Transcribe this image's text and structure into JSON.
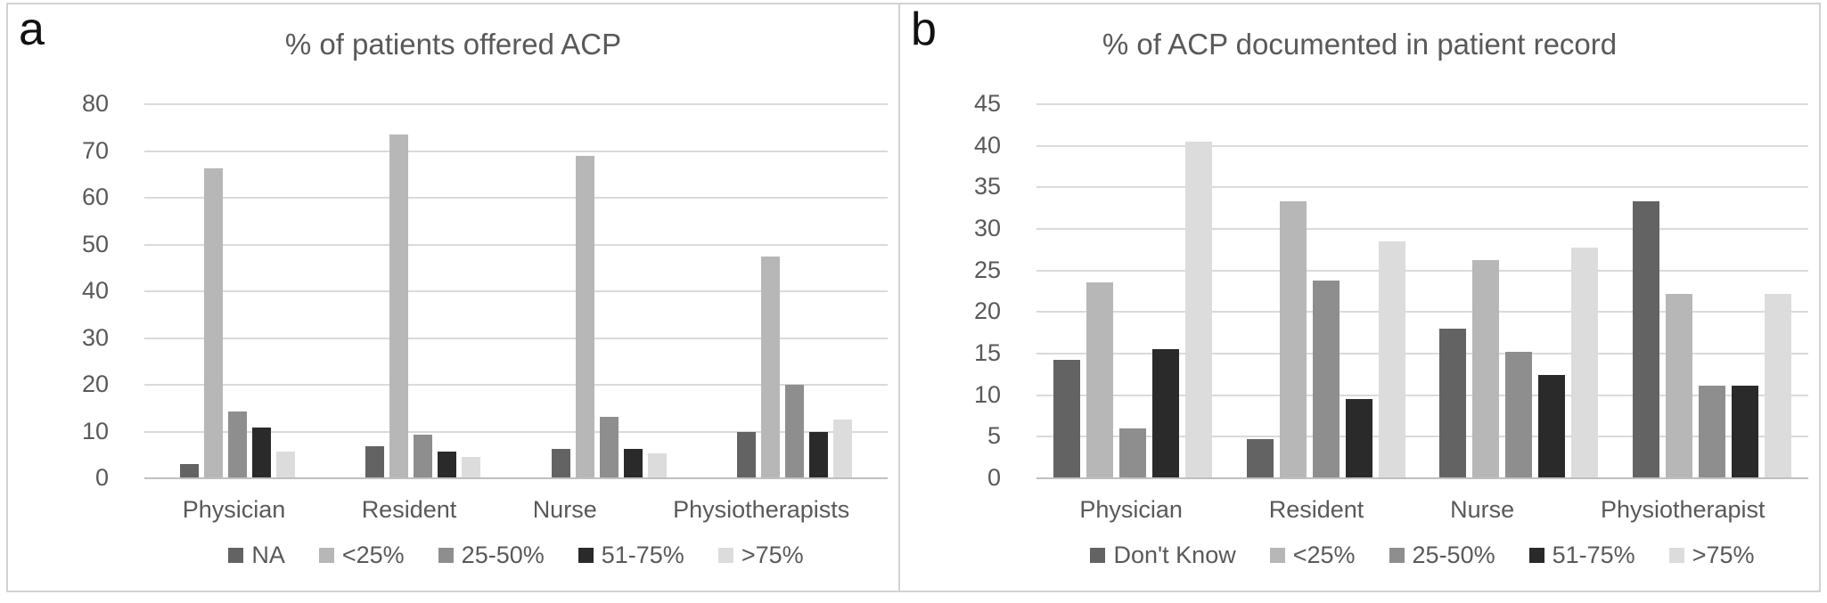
{
  "chart_data": [
    {
      "type": "bar",
      "panel_label": "a",
      "title": "% of patients offered ACP",
      "categories": [
        "Physician",
        "Resident",
        "Nurse",
        "Physiotherapists"
      ],
      "series": [
        {
          "name": "NA",
          "color": "#636363",
          "values": [
            3.1,
            6.8,
            6.2,
            10
          ]
        },
        {
          "name": "<25%",
          "color": "#b7b7b7",
          "values": [
            66.2,
            73.5,
            68.9,
            47.5
          ]
        },
        {
          "name": "25-50%",
          "color": "#8e8e8e",
          "values": [
            14.3,
            9.3,
            13.1,
            20
          ]
        },
        {
          "name": "51-75%",
          "color": "#2a2a2a",
          "values": [
            10.8,
            5.8,
            6.3,
            10
          ]
        },
        {
          "name": ">75%",
          "color": "#dcdcdc",
          "values": [
            5.7,
            4.6,
            5.4,
            12.5
          ]
        }
      ],
      "ylim": [
        0,
        80
      ],
      "ytick_step": 10,
      "grid": true,
      "legend_position": "bottom"
    },
    {
      "type": "bar",
      "panel_label": "b",
      "title": "% of ACP documented in patient record",
      "categories": [
        "Physician",
        "Resident",
        "Nurse",
        "Physiotherapist"
      ],
      "series": [
        {
          "name": "Don't Know",
          "color": "#636363",
          "values": [
            14.2,
            4.7,
            18,
            33.3
          ]
        },
        {
          "name": "<25%",
          "color": "#b7b7b7",
          "values": [
            23.6,
            33.3,
            26.3,
            22.2
          ]
        },
        {
          "name": "25-50%",
          "color": "#8e8e8e",
          "values": [
            6,
            23.8,
            15.2,
            11.1
          ]
        },
        {
          "name": "51-75%",
          "color": "#2a2a2a",
          "values": [
            15.5,
            9.5,
            12.4,
            11.1
          ]
        },
        {
          "name": ">75%",
          "color": "#dcdcdc",
          "values": [
            40.5,
            28.5,
            27.8,
            22.2
          ]
        }
      ],
      "ylim": [
        0,
        45
      ],
      "ytick_step": 5,
      "grid": true,
      "legend_position": "bottom"
    }
  ]
}
